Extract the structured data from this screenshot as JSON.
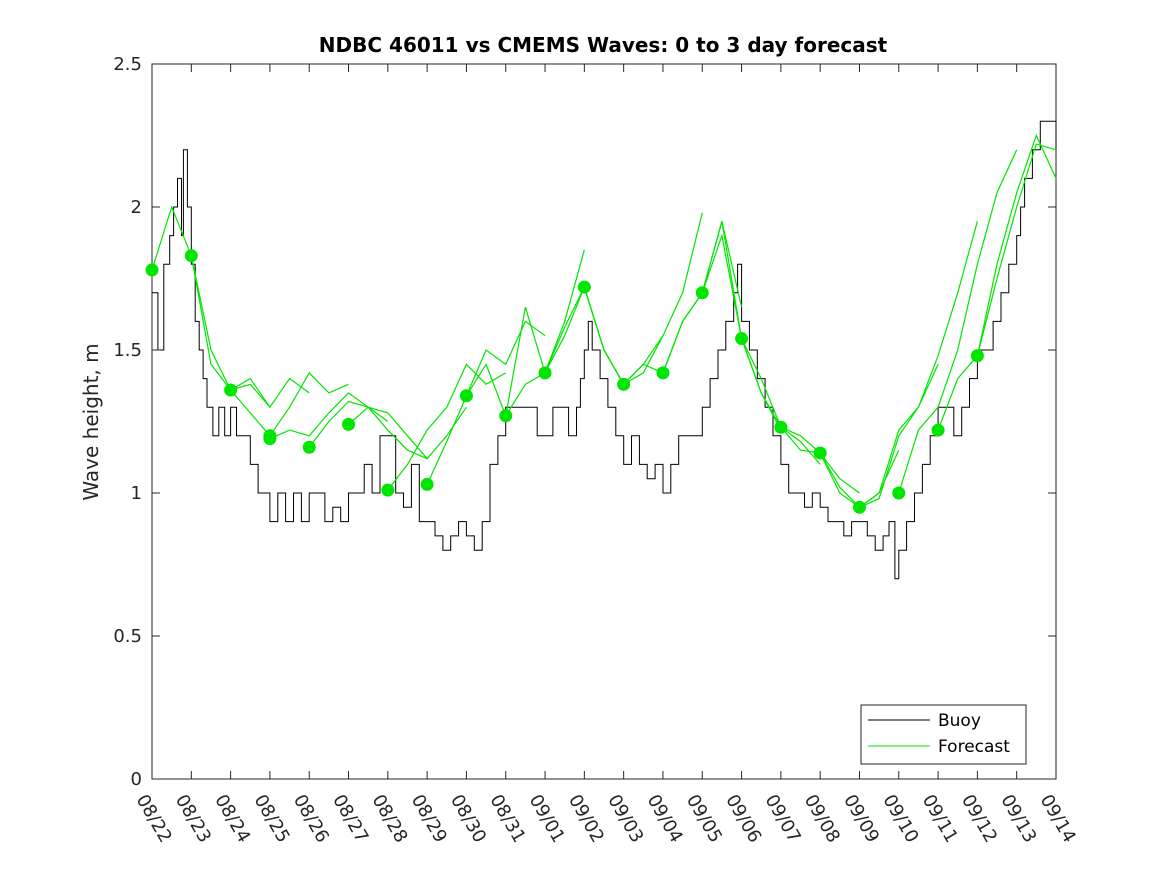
{
  "chart_data": {
    "type": "line",
    "title": "NDBC 46011 vs CMEMS Waves: 0 to 3 day forecast",
    "xlabel": "",
    "ylabel": "Wave height, m",
    "x_tick_labels": [
      "08/22",
      "08/23",
      "08/24",
      "08/25",
      "08/26",
      "08/27",
      "08/28",
      "08/29",
      "08/30",
      "08/31",
      "09/01",
      "09/02",
      "09/03",
      "09/04",
      "09/05",
      "09/06",
      "09/07",
      "09/08",
      "09/09",
      "09/10",
      "09/11",
      "09/12",
      "09/13",
      "09/14"
    ],
    "y_tick_labels": [
      "0",
      "0.5",
      "1",
      "1.5",
      "2",
      "2.5"
    ],
    "xlim_days": [
      0,
      23
    ],
    "ylim": [
      0,
      2.5
    ],
    "grid": false,
    "legend": {
      "position": "bottom-right",
      "entries": [
        "Buoy",
        "Forecast"
      ]
    },
    "colors": {
      "buoy": "#000000",
      "forecast": "#00e600",
      "axes": "#262626"
    },
    "series": [
      {
        "name": "Buoy",
        "x_days": [
          0,
          0.15,
          0.3,
          0.45,
          0.55,
          0.65,
          0.75,
          0.8,
          0.9,
          1.0,
          1.1,
          1.2,
          1.3,
          1.4,
          1.55,
          1.7,
          1.85,
          2.0,
          2.15,
          2.3,
          2.5,
          2.7,
          2.9,
          3.0,
          3.2,
          3.4,
          3.6,
          3.8,
          4.0,
          4.2,
          4.4,
          4.6,
          4.8,
          5.0,
          5.2,
          5.4,
          5.6,
          5.8,
          6.0,
          6.2,
          6.4,
          6.6,
          6.8,
          7.0,
          7.2,
          7.4,
          7.6,
          7.8,
          8.0,
          8.2,
          8.4,
          8.6,
          8.8,
          9.0,
          9.2,
          9.4,
          9.6,
          9.8,
          10.0,
          10.2,
          10.4,
          10.6,
          10.8,
          10.9,
          11.0,
          11.1,
          11.2,
          11.4,
          11.6,
          11.8,
          12.0,
          12.2,
          12.4,
          12.6,
          12.8,
          13.0,
          13.2,
          13.4,
          13.6,
          13.8,
          14.0,
          14.2,
          14.4,
          14.6,
          14.8,
          14.9,
          15.0,
          15.2,
          15.4,
          15.6,
          15.8,
          16.0,
          16.2,
          16.4,
          16.6,
          16.8,
          17.0,
          17.2,
          17.4,
          17.6,
          17.8,
          18.0,
          18.2,
          18.4,
          18.6,
          18.75,
          18.9,
          19.0,
          19.2,
          19.4,
          19.6,
          19.8,
          20.0,
          20.2,
          20.4,
          20.6,
          20.8,
          21.0,
          21.2,
          21.4,
          21.6,
          21.8,
          22.0,
          22.1,
          22.2,
          22.4,
          22.6,
          22.8,
          23.0
        ],
        "values": [
          1.7,
          1.5,
          1.8,
          1.9,
          2.0,
          2.1,
          1.9,
          2.2,
          2.0,
          1.8,
          1.6,
          1.5,
          1.4,
          1.3,
          1.2,
          1.3,
          1.2,
          1.3,
          1.2,
          1.2,
          1.1,
          1.0,
          1.0,
          0.9,
          1.0,
          0.9,
          1.0,
          0.9,
          1.0,
          1.0,
          0.9,
          0.95,
          0.9,
          1.0,
          1.0,
          1.1,
          1.0,
          1.2,
          1.2,
          1.0,
          0.95,
          1.1,
          0.9,
          0.9,
          0.85,
          0.8,
          0.85,
          0.9,
          0.85,
          0.8,
          0.9,
          1.1,
          1.2,
          1.3,
          1.3,
          1.3,
          1.3,
          1.2,
          1.2,
          1.3,
          1.3,
          1.2,
          1.3,
          1.4,
          1.5,
          1.6,
          1.5,
          1.4,
          1.3,
          1.2,
          1.1,
          1.2,
          1.1,
          1.05,
          1.1,
          1.0,
          1.1,
          1.2,
          1.2,
          1.2,
          1.3,
          1.4,
          1.5,
          1.6,
          1.7,
          1.8,
          1.6,
          1.5,
          1.4,
          1.3,
          1.2,
          1.1,
          1.0,
          1.0,
          0.95,
          1.0,
          0.95,
          0.9,
          0.9,
          0.85,
          0.9,
          0.9,
          0.85,
          0.8,
          0.85,
          0.9,
          0.7,
          0.8,
          0.9,
          1.0,
          1.1,
          1.2,
          1.3,
          1.3,
          1.2,
          1.3,
          1.4,
          1.5,
          1.5,
          1.6,
          1.7,
          1.8,
          1.9,
          2.0,
          2.1,
          2.2,
          2.3,
          2.3,
          2.2
        ]
      },
      {
        "name": "Forecast",
        "runs": [
          {
            "x_days": [
              0,
              0.5,
              1,
              1.5,
              2,
              2.5,
              3
            ],
            "values": [
              1.78,
              2.0,
              1.83,
              1.5,
              1.36,
              1.4,
              1.3
            ]
          },
          {
            "x_days": [
              1,
              1.5,
              2,
              2.5,
              3,
              3.5,
              4
            ],
            "values": [
              1.83,
              1.45,
              1.36,
              1.38,
              1.3,
              1.4,
              1.35
            ]
          },
          {
            "x_days": [
              2,
              2.5,
              3,
              3.5,
              4,
              4.5,
              5
            ],
            "values": [
              1.36,
              1.28,
              1.2,
              1.3,
              1.42,
              1.35,
              1.38
            ]
          },
          {
            "x_days": [
              3,
              3.5,
              4,
              4.5,
              5,
              5.5,
              6
            ],
            "values": [
              1.19,
              1.22,
              1.2,
              1.28,
              1.35,
              1.3,
              1.25
            ]
          },
          {
            "x_days": [
              4,
              4.5,
              5,
              5.5,
              6,
              6.5,
              7
            ],
            "values": [
              1.16,
              1.25,
              1.32,
              1.3,
              1.22,
              1.15,
              1.12
            ]
          },
          {
            "x_days": [
              5,
              5.5,
              6,
              6.5,
              7,
              7.5,
              8
            ],
            "values": [
              1.24,
              1.3,
              1.28,
              1.2,
              1.12,
              1.2,
              1.3
            ]
          },
          {
            "x_days": [
              6,
              6.5,
              7,
              7.5,
              8,
              8.5,
              9
            ],
            "values": [
              1.01,
              1.1,
              1.22,
              1.3,
              1.45,
              1.38,
              1.42
            ]
          },
          {
            "x_days": [
              7,
              7.5,
              8,
              8.5,
              9,
              9.5,
              10
            ],
            "values": [
              1.03,
              1.18,
              1.34,
              1.5,
              1.45,
              1.6,
              1.55
            ]
          },
          {
            "x_days": [
              8,
              8.5,
              9,
              9.5,
              10,
              10.5,
              11
            ],
            "values": [
              1.34,
              1.45,
              1.27,
              1.38,
              1.42,
              1.6,
              1.85
            ]
          },
          {
            "x_days": [
              9,
              9.5,
              10,
              10.5,
              11,
              11.5,
              12
            ],
            "values": [
              1.27,
              1.65,
              1.42,
              1.55,
              1.72,
              1.5,
              1.38
            ]
          },
          {
            "x_days": [
              10,
              10.5,
              11,
              11.5,
              12,
              12.5,
              13
            ],
            "values": [
              1.42,
              1.58,
              1.72,
              1.5,
              1.38,
              1.45,
              1.55
            ]
          },
          {
            "x_days": [
              11,
              11.5,
              12,
              12.5,
              13,
              13.5,
              14
            ],
            "values": [
              1.72,
              1.5,
              1.38,
              1.42,
              1.55,
              1.7,
              1.98
            ]
          },
          {
            "x_days": [
              12,
              12.5,
              13,
              13.5,
              14,
              14.5,
              15
            ],
            "values": [
              1.38,
              1.45,
              1.42,
              1.6,
              1.7,
              1.95,
              1.65
            ]
          },
          {
            "x_days": [
              13,
              13.5,
              14,
              14.5,
              15,
              15.5,
              16
            ],
            "values": [
              1.42,
              1.6,
              1.7,
              1.9,
              1.54,
              1.35,
              1.22
            ]
          },
          {
            "x_days": [
              14,
              14.5,
              15,
              15.5,
              16,
              16.5,
              17
            ],
            "values": [
              1.7,
              1.95,
              1.54,
              1.4,
              1.23,
              1.18,
              1.1
            ]
          },
          {
            "x_days": [
              15,
              15.5,
              16,
              16.5,
              17,
              17.5,
              18
            ],
            "values": [
              1.54,
              1.35,
              1.23,
              1.2,
              1.14,
              1.05,
              1.0
            ]
          },
          {
            "x_days": [
              16,
              16.5,
              17,
              17.5,
              18,
              18.5,
              19
            ],
            "values": [
              1.23,
              1.15,
              1.14,
              1.02,
              0.95,
              1.0,
              1.15
            ]
          },
          {
            "x_days": [
              17,
              17.5,
              18,
              18.5,
              19,
              19.5,
              20
            ],
            "values": [
              1.14,
              1.0,
              0.95,
              1.0,
              1.22,
              1.3,
              1.45
            ]
          },
          {
            "x_days": [
              18,
              18.5,
              19,
              19.5,
              20,
              20.5,
              21
            ],
            "values": [
              0.95,
              0.98,
              1.2,
              1.3,
              1.48,
              1.7,
              1.95
            ]
          },
          {
            "x_days": [
              19,
              19.5,
              20,
              20.5,
              21,
              21.5,
              22
            ],
            "values": [
              1.0,
              1.22,
              1.3,
              1.5,
              1.8,
              2.05,
              2.2
            ]
          },
          {
            "x_days": [
              20,
              20.5,
              21,
              21.5,
              22,
              22.5,
              23
            ],
            "values": [
              1.22,
              1.4,
              1.48,
              1.75,
              2.0,
              2.22,
              2.2
            ]
          },
          {
            "x_days": [
              21,
              21.5,
              22,
              22.5,
              23
            ],
            "values": [
              1.48,
              1.8,
              2.05,
              2.25,
              2.1
            ]
          }
        ],
        "markers": {
          "x_days": [
            0,
            1,
            2,
            3,
            3,
            4,
            5,
            6,
            7,
            8,
            9,
            10,
            11,
            12,
            13,
            14,
            15,
            16,
            17,
            18,
            19,
            20,
            21
          ],
          "values": [
            1.78,
            1.83,
            1.36,
            1.2,
            1.19,
            1.16,
            1.24,
            1.01,
            1.03,
            1.34,
            1.27,
            1.42,
            1.72,
            1.38,
            1.42,
            1.7,
            1.54,
            1.23,
            1.14,
            0.95,
            1.0,
            1.22,
            1.48
          ]
        }
      }
    ]
  }
}
